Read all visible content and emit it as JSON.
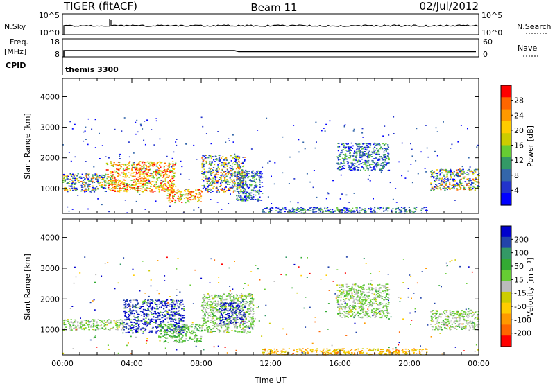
{
  "header": {
    "radar": "TIGER (fitACF)",
    "beam": "Beam 11",
    "date": "02/Jul/2012"
  },
  "noise_panel": {
    "left_label": "N.Sky",
    "right_label": "N.Search",
    "left_ticks": [
      "10^5",
      "10^0"
    ],
    "right_ticks": [
      "10^5",
      "10^0"
    ]
  },
  "freq_panel": {
    "label_top": "Freq.",
    "label_unit": "[MHz]",
    "left_ticks": [
      "18",
      "8"
    ],
    "right_label": "Nave",
    "right_ticks": [
      "60",
      "0"
    ]
  },
  "cpid_panel": {
    "label": "CPID",
    "value": "themis 3300"
  },
  "chart_data": [
    {
      "type": "heatmap",
      "name": "power",
      "ylabel": "Slant Range [km]",
      "yticks": [
        "4000",
        "3000",
        "2000",
        "1000"
      ],
      "yticks_values": [
        4000,
        3000,
        2000,
        1000
      ],
      "ylim": [
        180,
        4600
      ],
      "xlim": [
        0,
        24
      ],
      "colorbar": {
        "label": "Power [dB]",
        "ticks": [
          "28",
          "24",
          "20",
          "16",
          "12",
          "8",
          "4"
        ],
        "colors": [
          "#ff0000",
          "#ff6600",
          "#ff9900",
          "#ffcc00",
          "#cccc00",
          "#66cc33",
          "#339966",
          "#3366aa",
          "#2233cc",
          "#0000ff"
        ]
      },
      "regions": [
        {
          "t0": 0.0,
          "t1": 2.5,
          "r0": 900,
          "r1": 1500,
          "palette": "mix"
        },
        {
          "t0": 2.5,
          "t1": 6.5,
          "r0": 900,
          "r1": 1900,
          "palette": "warm"
        },
        {
          "t0": 6.0,
          "t1": 8.0,
          "r0": 550,
          "r1": 1000,
          "palette": "warm"
        },
        {
          "t0": 8.0,
          "t1": 10.5,
          "r0": 900,
          "r1": 2100,
          "palette": "mix"
        },
        {
          "t0": 10.0,
          "t1": 11.5,
          "r0": 600,
          "r1": 1600,
          "palette": "cool"
        },
        {
          "t0": 15.8,
          "t1": 18.8,
          "r0": 1600,
          "r1": 2500,
          "palette": "cool"
        },
        {
          "t0": 21.2,
          "t1": 24.0,
          "r0": 950,
          "r1": 1650,
          "palette": "mix"
        },
        {
          "t0": 11.5,
          "t1": 21.0,
          "r0": 200,
          "r1": 400,
          "palette": "cool"
        }
      ]
    },
    {
      "type": "heatmap",
      "name": "velocity",
      "xlabel": "Time UT",
      "ylabel": "Slant Range [km]",
      "yticks": [
        "4000",
        "3000",
        "2000",
        "1000"
      ],
      "yticks_values": [
        4000,
        3000,
        2000,
        1000
      ],
      "ylim": [
        180,
        4600
      ],
      "xlim": [
        0,
        24
      ],
      "xticks": [
        "00:00",
        "04:00",
        "08:00",
        "12:00",
        "16:00",
        "20:00",
        "00:00"
      ],
      "xticks_values": [
        0,
        4,
        8,
        12,
        16,
        20,
        24
      ],
      "colorbar": {
        "label": "Velocity [m s⁻¹]",
        "ticks": [
          "200",
          "100",
          "50",
          "15",
          "-15",
          "-50",
          "-100",
          "-200"
        ],
        "colors": [
          "#0000cc",
          "#2244aa",
          "#339966",
          "#33aa33",
          "#66cc33",
          "#bbbbbb",
          "#cccc00",
          "#ffcc00",
          "#ff9900",
          "#ff6600",
          "#ff0000"
        ]
      },
      "regions": [
        {
          "t0": 0.0,
          "t1": 3.5,
          "r0": 1000,
          "r1": 1350,
          "palette": "gray"
        },
        {
          "t0": 3.5,
          "t1": 7.0,
          "r0": 900,
          "r1": 2000,
          "palette": "blue"
        },
        {
          "t0": 5.5,
          "t1": 8.0,
          "r0": 600,
          "r1": 1200,
          "palette": "green"
        },
        {
          "t0": 8.0,
          "t1": 11.0,
          "r0": 900,
          "r1": 2200,
          "palette": "gray"
        },
        {
          "t0": 9.0,
          "t1": 10.5,
          "r0": 1200,
          "r1": 1900,
          "palette": "blue"
        },
        {
          "t0": 15.8,
          "t1": 18.8,
          "r0": 1400,
          "r1": 2500,
          "palette": "gray"
        },
        {
          "t0": 21.2,
          "t1": 24.0,
          "r0": 1000,
          "r1": 1650,
          "palette": "gray"
        },
        {
          "t0": 11.5,
          "t1": 21.0,
          "r0": 200,
          "r1": 400,
          "palette": "orange"
        }
      ]
    }
  ]
}
